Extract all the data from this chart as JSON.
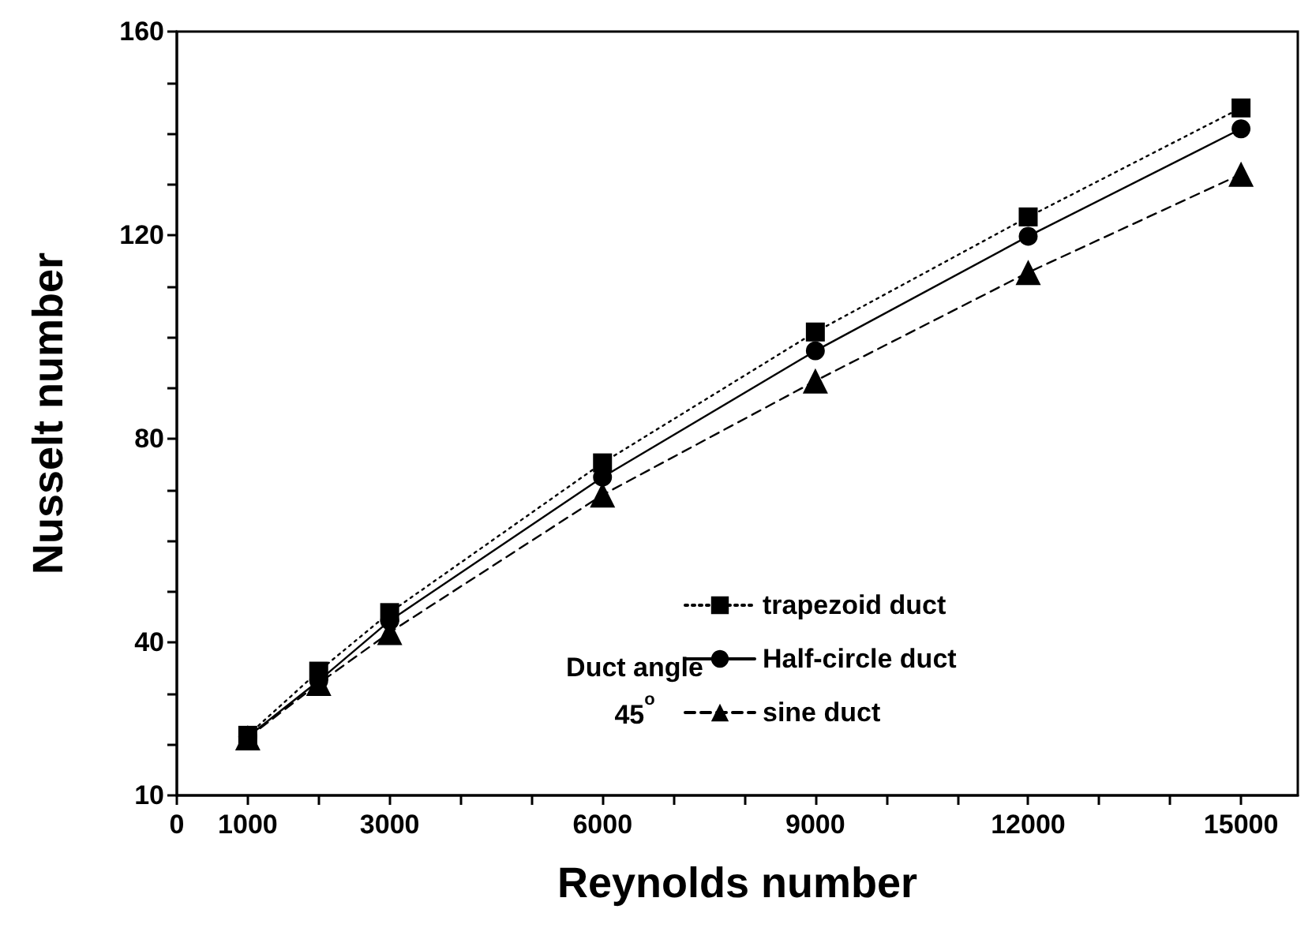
{
  "chart_data": {
    "type": "line",
    "xlabel": "Reynolds number",
    "ylabel": "Nusselt number",
    "x": [
      1000,
      2000,
      3000,
      6000,
      9000,
      12000,
      15000
    ],
    "series": [
      {
        "name": "trapezoid duct",
        "color": "#000000",
        "marker": "square",
        "line_style": "dotted",
        "values": [
          21.8,
          34.4,
          45.9,
          75.3,
          101,
          123.6,
          145
        ]
      },
      {
        "name": "Half-circle duct",
        "color": "#000000",
        "marker": "circle",
        "line_style": "solid",
        "values": [
          21.5,
          32.5,
          44.3,
          72.5,
          97.3,
          119.8,
          140.9
        ]
      },
      {
        "name": "sine duct",
        "color": "#000000",
        "marker": "triangle",
        "line_style": "dashed",
        "values": [
          21.3,
          32,
          42,
          69,
          91.4,
          112.7,
          132
        ]
      }
    ],
    "xlim": [
      0,
      15800
    ],
    "xticks": [
      0,
      1000,
      {
        "value": 2000,
        "label": null
      },
      3000,
      {
        "value": 4000,
        "label": null
      },
      {
        "value": 5000,
        "label": null
      },
      6000,
      {
        "value": 7000,
        "label": null
      },
      {
        "value": 8000,
        "label": null
      },
      9000,
      {
        "value": 10000,
        "label": null
      },
      {
        "value": 11000,
        "label": null
      },
      12000,
      {
        "value": 13000,
        "label": null
      },
      {
        "value": 14000,
        "label": null
      },
      15000
    ],
    "ylim": [
      10,
      160
    ],
    "yticks": [
      10,
      {
        "value": 20,
        "label": null
      },
      {
        "value": 30,
        "label": null
      },
      40,
      {
        "value": 50,
        "label": null
      },
      {
        "value": 60,
        "label": null
      },
      {
        "value": 70,
        "label": null
      },
      80,
      {
        "value": 90,
        "label": null
      },
      {
        "value": 100,
        "label": null
      },
      {
        "value": 110,
        "label": null
      },
      120,
      {
        "value": 130,
        "label": null
      },
      {
        "value": 140,
        "label": null
      },
      {
        "value": 150,
        "label": null
      },
      160
    ],
    "annotations": [
      "Duct angle\n45$^{o}$"
    ],
    "legend": "right",
    "grid": false
  }
}
